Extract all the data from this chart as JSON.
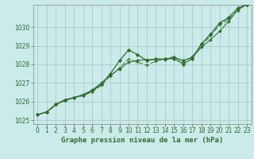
{
  "title": "Graphe pression niveau de la mer (hPa)",
  "bg_color": "#cbeaea",
  "grid_color": "#b0c8c8",
  "line_color_dark": "#2d6e2d",
  "line_color_mid": "#3a803a",
  "xlim": [
    -0.5,
    23.5
  ],
  "ylim": [
    1024.8,
    1031.2
  ],
  "xticks": [
    0,
    1,
    2,
    3,
    4,
    5,
    6,
    7,
    8,
    9,
    10,
    11,
    12,
    13,
    14,
    15,
    16,
    17,
    18,
    19,
    20,
    21,
    22,
    23
  ],
  "yticks": [
    1025,
    1026,
    1027,
    1028,
    1029,
    1030
  ],
  "series1_x": [
    0,
    1,
    2,
    3,
    4,
    5,
    6,
    7,
    8,
    9,
    10,
    11,
    12,
    13,
    14,
    15,
    16,
    17,
    18,
    19,
    20,
    21,
    22,
    23
  ],
  "series1_y": [
    1025.3,
    1025.45,
    1025.85,
    1026.1,
    1026.22,
    1026.35,
    1026.58,
    1026.92,
    1027.5,
    1028.2,
    1028.78,
    1028.52,
    1028.2,
    1028.3,
    1028.28,
    1028.32,
    1028.02,
    1028.32,
    1029.1,
    1029.62,
    1030.22,
    1030.52,
    1031.02,
    1031.22
  ],
  "series2_x": [
    0,
    1,
    2,
    3,
    4,
    5,
    6,
    7,
    8,
    9,
    10,
    11,
    12,
    13,
    14,
    15,
    16,
    17,
    18,
    19,
    20,
    21,
    22,
    23
  ],
  "series2_y": [
    1025.3,
    1025.45,
    1025.85,
    1026.1,
    1026.22,
    1026.38,
    1026.62,
    1027.0,
    1027.42,
    1027.75,
    1028.12,
    1028.22,
    1028.25,
    1028.27,
    1028.27,
    1028.37,
    1028.22,
    1028.37,
    1028.92,
    1029.32,
    1029.78,
    1030.32,
    1030.92,
    1031.22
  ],
  "series3_x": [
    0,
    1,
    2,
    3,
    4,
    5,
    6,
    7,
    8,
    9,
    10,
    11,
    12,
    13,
    14,
    15,
    16,
    17,
    18,
    19,
    20,
    21,
    22,
    23
  ],
  "series3_y": [
    1025.3,
    1025.42,
    1025.82,
    1026.06,
    1026.2,
    1026.32,
    1026.52,
    1026.88,
    1027.38,
    1027.82,
    1028.28,
    1028.12,
    1027.96,
    1028.18,
    1028.28,
    1028.42,
    1028.12,
    1028.42,
    1029.02,
    1029.52,
    1030.12,
    1030.42,
    1030.92,
    1031.28
  ],
  "title_fontsize": 6.5,
  "tick_fontsize": 5.5
}
